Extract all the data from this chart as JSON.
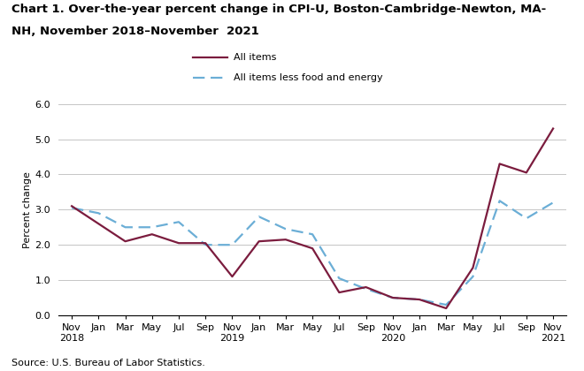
{
  "title_line1": "Chart 1. Over-the-year percent change in CPI-U, Boston-Cambridge-Newton, MA-",
  "title_line2": "NH, November 2018–November  2021",
  "ylabel": "Percent change",
  "source": "Source: U.S. Bureau of Labor Statistics.",
  "ylim": [
    0.0,
    6.0
  ],
  "yticks": [
    0.0,
    1.0,
    2.0,
    3.0,
    4.0,
    5.0,
    6.0
  ],
  "x_labels": [
    "Nov\n2018",
    "Jan",
    "Mar",
    "May",
    "Jul",
    "Sep",
    "Nov\n2019",
    "Jan",
    "Mar",
    "May",
    "Jul",
    "Sep",
    "Nov\n2020",
    "Jan",
    "Mar",
    "May",
    "Jul",
    "Sep",
    "Nov\n2021"
  ],
  "all_items": [
    3.1,
    2.6,
    2.1,
    2.3,
    2.05,
    2.05,
    1.1,
    2.1,
    2.15,
    1.9,
    0.65,
    0.8,
    0.5,
    0.45,
    0.2,
    1.35,
    4.3,
    4.05,
    5.3
  ],
  "all_items_less": [
    3.05,
    2.9,
    2.5,
    2.5,
    2.65,
    2.0,
    2.0,
    2.8,
    2.45,
    2.3,
    1.05,
    0.75,
    0.5,
    0.45,
    0.3,
    1.1,
    3.25,
    2.75,
    3.2
  ],
  "all_items_color": "#7b1c3e",
  "all_items_less_color": "#6baed6",
  "legend_all_items": "All items",
  "legend_all_items_less": "All items less food and energy"
}
